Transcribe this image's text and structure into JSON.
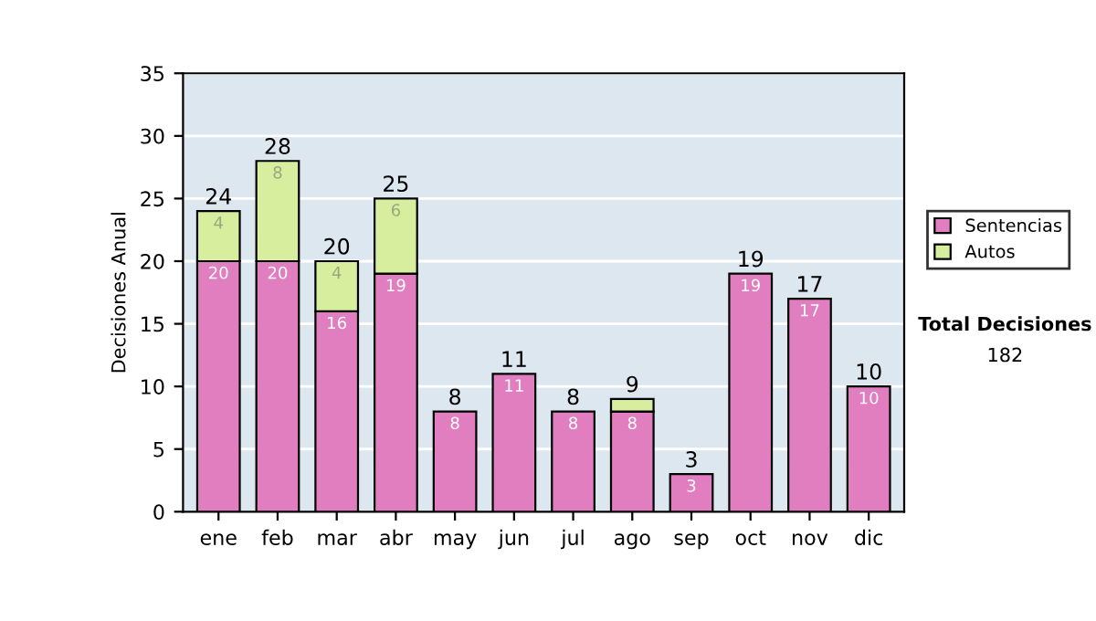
{
  "chart_data": {
    "type": "bar",
    "stacked": true,
    "ylabel": "Decisiones Anual",
    "categories": [
      "ene",
      "feb",
      "mar",
      "abr",
      "may",
      "jun",
      "jul",
      "ago",
      "sep",
      "oct",
      "nov",
      "dic"
    ],
    "series": [
      {
        "name": "Sentencias",
        "color": "#e07ec0",
        "values": [
          20,
          20,
          16,
          19,
          8,
          11,
          8,
          8,
          3,
          19,
          17,
          10
        ],
        "value_labels": [
          "20",
          "20",
          "16",
          "19",
          "8",
          "11",
          "8",
          "8",
          "3",
          "19",
          "17",
          "10"
        ]
      },
      {
        "name": "Autos",
        "color": "#d6ee9e",
        "values": [
          4,
          8,
          4,
          6,
          null,
          null,
          null,
          1,
          null,
          null,
          null,
          null
        ],
        "value_labels": [
          "4",
          "8",
          "4",
          "6",
          null,
          null,
          null,
          null,
          null,
          null,
          null,
          null
        ]
      }
    ],
    "totals": [
      "24",
      "28",
      "20",
      "25",
      "8",
      "11",
      "8",
      "9",
      "3",
      "19",
      "17",
      "10"
    ],
    "ylim": [
      0,
      35
    ],
    "yticks": [
      0,
      5,
      10,
      15,
      20,
      25,
      30,
      35
    ],
    "grid": "y",
    "legend": "right",
    "annotations": [
      "Total Decisiones",
      "182"
    ]
  }
}
